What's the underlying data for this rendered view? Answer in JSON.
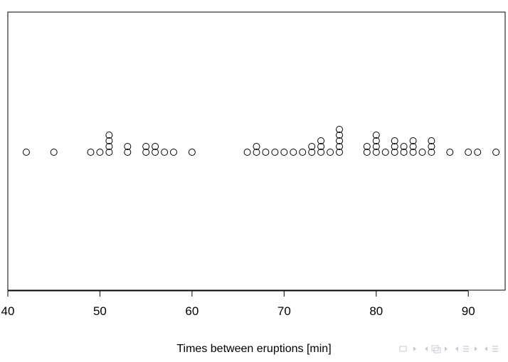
{
  "chart_data": {
    "type": "scatter",
    "subtype": "stacked dot plot",
    "title": "",
    "xlabel": "Times between eruptions [min]",
    "ylabel": "",
    "xlim": [
      40,
      94
    ],
    "x_ticks": [
      40,
      50,
      60,
      70,
      80,
      90
    ],
    "x_tick_labels": [
      "40",
      "50",
      "60",
      "70",
      "80",
      "90"
    ],
    "grid": false,
    "legend": "none",
    "marker": "open circle",
    "points": [
      {
        "x": 42,
        "count": 1
      },
      {
        "x": 45,
        "count": 1
      },
      {
        "x": 49,
        "count": 1
      },
      {
        "x": 50,
        "count": 1
      },
      {
        "x": 51,
        "count": 4
      },
      {
        "x": 53,
        "count": 2
      },
      {
        "x": 55,
        "count": 2
      },
      {
        "x": 56,
        "count": 2
      },
      {
        "x": 57,
        "count": 1
      },
      {
        "x": 58,
        "count": 1
      },
      {
        "x": 60,
        "count": 1
      },
      {
        "x": 66,
        "count": 1
      },
      {
        "x": 67,
        "count": 2
      },
      {
        "x": 68,
        "count": 1
      },
      {
        "x": 69,
        "count": 1
      },
      {
        "x": 70,
        "count": 1
      },
      {
        "x": 71,
        "count": 1
      },
      {
        "x": 72,
        "count": 1
      },
      {
        "x": 73,
        "count": 2
      },
      {
        "x": 74,
        "count": 3
      },
      {
        "x": 75,
        "count": 1
      },
      {
        "x": 76,
        "count": 5
      },
      {
        "x": 79,
        "count": 2
      },
      {
        "x": 80,
        "count": 4
      },
      {
        "x": 81,
        "count": 1
      },
      {
        "x": 82,
        "count": 3
      },
      {
        "x": 83,
        "count": 2
      },
      {
        "x": 84,
        "count": 3
      },
      {
        "x": 85,
        "count": 1
      },
      {
        "x": 86,
        "count": 3
      },
      {
        "x": 88,
        "count": 1
      },
      {
        "x": 90,
        "count": 1
      },
      {
        "x": 91,
        "count": 1
      },
      {
        "x": 93,
        "count": 1
      }
    ]
  },
  "colors": {
    "axis": "#000000",
    "marker_stroke": "#000000",
    "nav_icons": "#c9c9d6"
  },
  "nav_icons": [
    "nav-frame-icon",
    "nav-prev-arrow-icon",
    "nav-next-arrow-icon",
    "nav-slide-icon",
    "nav-section-icon",
    "nav-subsection-icon"
  ]
}
